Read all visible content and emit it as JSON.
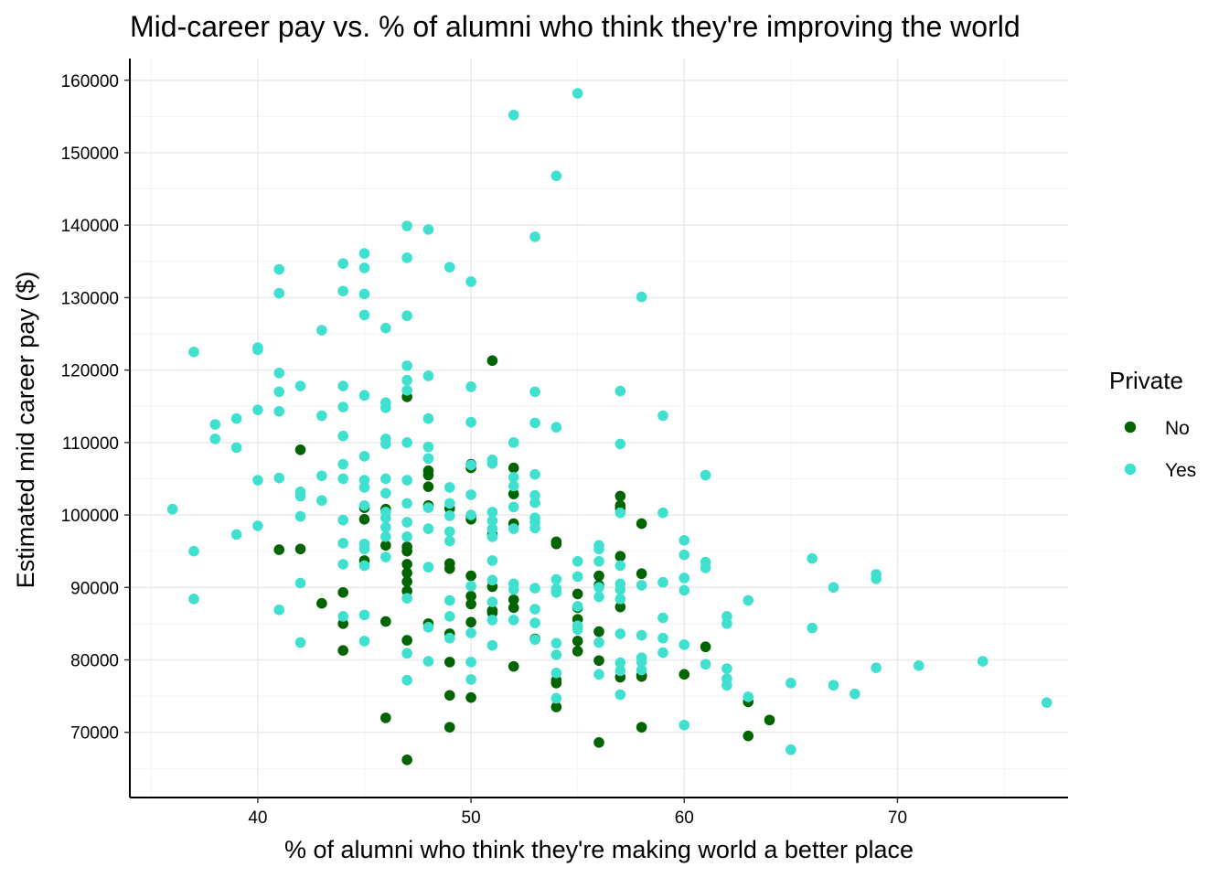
{
  "chart_data": {
    "type": "scatter",
    "title": "Mid-career pay vs. % of alumni who think they're improving the world",
    "xlabel": "% of alumni who think they're making world a better place",
    "ylabel": "Estimated mid career pay ($)",
    "xlim": [
      34,
      78
    ],
    "ylim": [
      61000,
      163000
    ],
    "x_ticks": [
      40,
      50,
      60,
      70
    ],
    "y_ticks": [
      70000,
      80000,
      90000,
      100000,
      110000,
      120000,
      130000,
      140000,
      150000,
      160000
    ],
    "grid": true,
    "legend": {
      "title": "Private",
      "position": "right"
    },
    "series": [
      {
        "name": "No",
        "color": "#006400",
        "points": [
          [
            42,
            109000
          ],
          [
            41,
            95200
          ],
          [
            42,
            95300
          ],
          [
            43,
            87800
          ],
          [
            44,
            89300
          ],
          [
            44,
            85000
          ],
          [
            44,
            81300
          ],
          [
            45,
            101000
          ],
          [
            45,
            99400
          ],
          [
            45,
            93700
          ],
          [
            46,
            100800
          ],
          [
            46,
            95800
          ],
          [
            46,
            85300
          ],
          [
            46,
            72000
          ],
          [
            47,
            116300
          ],
          [
            47,
            95600
          ],
          [
            47,
            95000
          ],
          [
            47,
            93200
          ],
          [
            47,
            92000
          ],
          [
            47,
            90800
          ],
          [
            47,
            89500
          ],
          [
            47,
            82700
          ],
          [
            47,
            66200
          ],
          [
            48,
            106100
          ],
          [
            48,
            105500
          ],
          [
            48,
            103900
          ],
          [
            48,
            101300
          ],
          [
            48,
            85000
          ],
          [
            49,
            100900
          ],
          [
            49,
            93300
          ],
          [
            49,
            92600
          ],
          [
            49,
            83600
          ],
          [
            49,
            79700
          ],
          [
            49,
            75100
          ],
          [
            49,
            70700
          ],
          [
            50,
            107000
          ],
          [
            50,
            106500
          ],
          [
            50,
            99800
          ],
          [
            50,
            99400
          ],
          [
            50,
            91600
          ],
          [
            50,
            88800
          ],
          [
            50,
            87700
          ],
          [
            50,
            85200
          ],
          [
            50,
            74800
          ],
          [
            51,
            121300
          ],
          [
            51,
            97300
          ],
          [
            51,
            90100
          ],
          [
            51,
            86800
          ],
          [
            51,
            86500
          ],
          [
            52,
            106500
          ],
          [
            52,
            102900
          ],
          [
            52,
            98800
          ],
          [
            52,
            88300
          ],
          [
            52,
            87200
          ],
          [
            52,
            79100
          ],
          [
            53,
            82900
          ],
          [
            54,
            96300
          ],
          [
            54,
            96000
          ],
          [
            54,
            77200
          ],
          [
            54,
            76800
          ],
          [
            54,
            73500
          ],
          [
            55,
            89100
          ],
          [
            55,
            87200
          ],
          [
            55,
            85600
          ],
          [
            55,
            82600
          ],
          [
            55,
            81200
          ],
          [
            56,
            91600
          ],
          [
            56,
            90300
          ],
          [
            56,
            83900
          ],
          [
            56,
            79900
          ],
          [
            56,
            68600
          ],
          [
            57,
            102600
          ],
          [
            57,
            101300
          ],
          [
            57,
            100900
          ],
          [
            57,
            94300
          ],
          [
            57,
            87300
          ],
          [
            57,
            77600
          ],
          [
            58,
            98800
          ],
          [
            58,
            91900
          ],
          [
            58,
            77900
          ],
          [
            58,
            77700
          ],
          [
            58,
            70700
          ],
          [
            60,
            78000
          ],
          [
            61,
            81800
          ],
          [
            63,
            74200
          ],
          [
            63,
            69500
          ],
          [
            64,
            71700
          ]
        ]
      },
      {
        "name": "Yes",
        "color": "#40E0D0",
        "points": [
          [
            36,
            100800
          ],
          [
            37,
            122500
          ],
          [
            37,
            95000
          ],
          [
            37,
            88400
          ],
          [
            38,
            112500
          ],
          [
            38,
            110500
          ],
          [
            39,
            113300
          ],
          [
            39,
            109300
          ],
          [
            39,
            97300
          ],
          [
            40,
            123100
          ],
          [
            40,
            122800
          ],
          [
            40,
            114500
          ],
          [
            40,
            104800
          ],
          [
            40,
            98500
          ],
          [
            41,
            133900
          ],
          [
            41,
            130600
          ],
          [
            41,
            119600
          ],
          [
            41,
            117000
          ],
          [
            41,
            114300
          ],
          [
            41,
            105100
          ],
          [
            41,
            86900
          ],
          [
            42,
            117800
          ],
          [
            42,
            103200
          ],
          [
            42,
            102600
          ],
          [
            42,
            99800
          ],
          [
            42,
            90600
          ],
          [
            42,
            82400
          ],
          [
            43,
            125500
          ],
          [
            43,
            113700
          ],
          [
            43,
            105400
          ],
          [
            43,
            102000
          ],
          [
            44,
            134700
          ],
          [
            44,
            130900
          ],
          [
            44,
            117800
          ],
          [
            44,
            114900
          ],
          [
            44,
            110900
          ],
          [
            44,
            107000
          ],
          [
            44,
            105000
          ],
          [
            44,
            99300
          ],
          [
            44,
            96100
          ],
          [
            44,
            93200
          ],
          [
            44,
            86000
          ],
          [
            45,
            136100
          ],
          [
            45,
            134100
          ],
          [
            45,
            130500
          ],
          [
            45,
            127600
          ],
          [
            45,
            116500
          ],
          [
            45,
            108100
          ],
          [
            45,
            104800
          ],
          [
            45,
            103800
          ],
          [
            45,
            101300
          ],
          [
            45,
            96000
          ],
          [
            45,
            95300
          ],
          [
            45,
            93000
          ],
          [
            45,
            86200
          ],
          [
            45,
            82600
          ],
          [
            46,
            125800
          ],
          [
            46,
            115500
          ],
          [
            46,
            114800
          ],
          [
            46,
            110500
          ],
          [
            46,
            109800
          ],
          [
            46,
            105000
          ],
          [
            46,
            103000
          ],
          [
            46,
            100400
          ],
          [
            46,
            99600
          ],
          [
            46,
            98300
          ],
          [
            46,
            97000
          ],
          [
            46,
            94200
          ],
          [
            47,
            139900
          ],
          [
            47,
            135500
          ],
          [
            47,
            127500
          ],
          [
            47,
            120600
          ],
          [
            47,
            118600
          ],
          [
            47,
            117200
          ],
          [
            47,
            110000
          ],
          [
            47,
            104800
          ],
          [
            47,
            101600
          ],
          [
            47,
            99000
          ],
          [
            47,
            97000
          ],
          [
            47,
            88500
          ],
          [
            47,
            80900
          ],
          [
            47,
            77200
          ],
          [
            48,
            139400
          ],
          [
            48,
            119200
          ],
          [
            48,
            113300
          ],
          [
            48,
            109400
          ],
          [
            48,
            107800
          ],
          [
            48,
            101000
          ],
          [
            48,
            98100
          ],
          [
            48,
            92800
          ],
          [
            48,
            84500
          ],
          [
            48,
            79800
          ],
          [
            49,
            134200
          ],
          [
            49,
            103800
          ],
          [
            49,
            101600
          ],
          [
            49,
            99900
          ],
          [
            49,
            97700
          ],
          [
            49,
            96400
          ],
          [
            49,
            88200
          ],
          [
            49,
            86000
          ],
          [
            49,
            83000
          ],
          [
            50,
            132200
          ],
          [
            50,
            117700
          ],
          [
            50,
            112800
          ],
          [
            50,
            106900
          ],
          [
            50,
            102800
          ],
          [
            50,
            100000
          ],
          [
            50,
            90200
          ],
          [
            50,
            83700
          ],
          [
            50,
            79700
          ],
          [
            50,
            77300
          ],
          [
            51,
            107600
          ],
          [
            51,
            107100
          ],
          [
            51,
            100400
          ],
          [
            51,
            99200
          ],
          [
            51,
            98100
          ],
          [
            51,
            97000
          ],
          [
            51,
            93700
          ],
          [
            51,
            91000
          ],
          [
            51,
            88000
          ],
          [
            51,
            85500
          ],
          [
            51,
            82000
          ],
          [
            52,
            155200
          ],
          [
            52,
            110000
          ],
          [
            52,
            105200
          ],
          [
            52,
            104000
          ],
          [
            52,
            101100
          ],
          [
            52,
            98100
          ],
          [
            52,
            90500
          ],
          [
            52,
            89700
          ],
          [
            52,
            85500
          ],
          [
            53,
            138400
          ],
          [
            53,
            117000
          ],
          [
            53,
            112700
          ],
          [
            53,
            105600
          ],
          [
            53,
            102700
          ],
          [
            53,
            101700
          ],
          [
            53,
            99600
          ],
          [
            53,
            99000
          ],
          [
            53,
            98200
          ],
          [
            53,
            89900
          ],
          [
            53,
            87000
          ],
          [
            53,
            85100
          ],
          [
            53,
            82800
          ],
          [
            54,
            146800
          ],
          [
            54,
            112100
          ],
          [
            54,
            91100
          ],
          [
            54,
            89800
          ],
          [
            54,
            89300
          ],
          [
            54,
            82300
          ],
          [
            54,
            80700
          ],
          [
            54,
            78200
          ],
          [
            54,
            74700
          ],
          [
            55,
            158200
          ],
          [
            55,
            93600
          ],
          [
            55,
            91500
          ],
          [
            55,
            87400
          ],
          [
            55,
            84700
          ],
          [
            55,
            84200
          ],
          [
            56,
            95800
          ],
          [
            56,
            95300
          ],
          [
            56,
            93600
          ],
          [
            56,
            90000
          ],
          [
            56,
            88700
          ],
          [
            56,
            82400
          ],
          [
            56,
            78000
          ],
          [
            57,
            117100
          ],
          [
            57,
            109800
          ],
          [
            57,
            100300
          ],
          [
            57,
            93000
          ],
          [
            57,
            90500
          ],
          [
            57,
            89700
          ],
          [
            57,
            88400
          ],
          [
            57,
            83600
          ],
          [
            57,
            79600
          ],
          [
            57,
            78500
          ],
          [
            57,
            75200
          ],
          [
            58,
            130100
          ],
          [
            58,
            90300
          ],
          [
            58,
            83400
          ],
          [
            58,
            80300
          ],
          [
            58,
            79700
          ],
          [
            58,
            78600
          ],
          [
            59,
            113700
          ],
          [
            59,
            100300
          ],
          [
            59,
            90700
          ],
          [
            59,
            85800
          ],
          [
            59,
            83000
          ],
          [
            59,
            81000
          ],
          [
            60,
            96500
          ],
          [
            60,
            94500
          ],
          [
            60,
            91300
          ],
          [
            60,
            89600
          ],
          [
            60,
            82100
          ],
          [
            60,
            71000
          ],
          [
            61,
            105500
          ],
          [
            61,
            93500
          ],
          [
            61,
            92700
          ],
          [
            61,
            79400
          ],
          [
            62,
            86000
          ],
          [
            62,
            85000
          ],
          [
            62,
            78800
          ],
          [
            62,
            77400
          ],
          [
            62,
            76500
          ],
          [
            63,
            88200
          ],
          [
            63,
            74900
          ],
          [
            65,
            76800
          ],
          [
            65,
            67600
          ],
          [
            66,
            94000
          ],
          [
            66,
            84400
          ],
          [
            67,
            90000
          ],
          [
            67,
            76500
          ],
          [
            68,
            75300
          ],
          [
            69,
            91800
          ],
          [
            69,
            91200
          ],
          [
            69,
            78900
          ],
          [
            71,
            79200
          ],
          [
            74,
            79800
          ],
          [
            77,
            74100
          ]
        ]
      }
    ]
  }
}
